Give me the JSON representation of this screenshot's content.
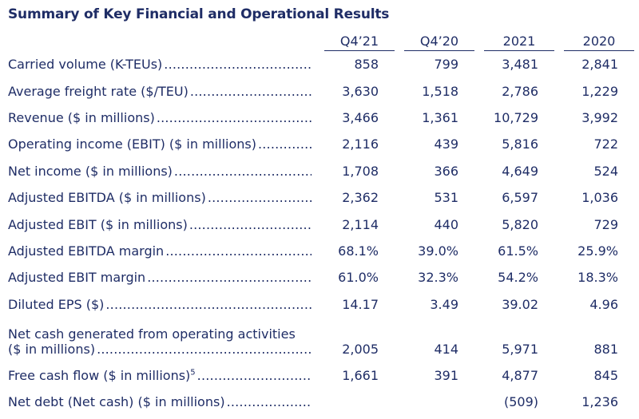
{
  "title": "Summary of Key Financial and Operational Results",
  "colors": {
    "text": "#1F2D66",
    "rule": "#1F2D66",
    "background": "#FFFFFF"
  },
  "table": {
    "columns": [
      "Q4’21",
      "Q4’20",
      "2021",
      "2020"
    ],
    "rows": [
      {
        "label": "Carried volume (K-TEUs)",
        "values": [
          "858",
          "799",
          "3,481",
          "2,841"
        ]
      },
      {
        "label": "Average freight rate ($/TEU)",
        "values": [
          "3,630",
          "1,518",
          "2,786",
          "1,229"
        ]
      },
      {
        "label": "Revenue ($ in millions)",
        "values": [
          "3,466",
          "1,361",
          "10,729",
          "3,992"
        ]
      },
      {
        "label": "Operating income (EBIT) ($ in millions)",
        "values": [
          "2,116",
          "439",
          "5,816",
          "722"
        ]
      },
      {
        "label": "Net income ($ in millions)",
        "values": [
          "1,708",
          "366",
          "4,649",
          "524"
        ]
      },
      {
        "label": "Adjusted EBITDA ($ in millions)",
        "values": [
          "2,362",
          "531",
          "6,597",
          "1,036"
        ]
      },
      {
        "label": "Adjusted EBIT ($ in millions)",
        "values": [
          "2,114",
          "440",
          "5,820",
          "729"
        ]
      },
      {
        "label": "Adjusted EBITDA margin",
        "values": [
          "68.1%",
          "39.0%",
          "61.5%",
          "25.9%"
        ]
      },
      {
        "label": "Adjusted EBIT margin",
        "values": [
          "61.0%",
          "32.3%",
          "54.2%",
          "18.3%"
        ]
      },
      {
        "label": "Diluted EPS ($)",
        "values": [
          "14.17",
          "3.49",
          "39.02",
          "4.96"
        ]
      },
      {
        "label": "Net cash generated from operating activities",
        "label2": "($ in millions)",
        "values": [
          "2,005",
          "414",
          "5,971",
          "881"
        ]
      },
      {
        "label": "Free cash flow ($ in millions)",
        "sup": "5",
        "values": [
          "1,661",
          "391",
          "4,877",
          "845"
        ]
      },
      {
        "label": "Net debt (Net cash) ($ in millions)",
        "values": [
          "",
          "",
          "(509)",
          "1,236"
        ]
      }
    ]
  }
}
